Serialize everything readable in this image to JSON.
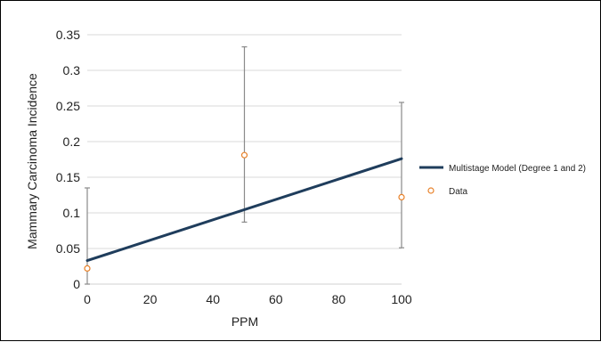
{
  "chart_data": {
    "type": "line",
    "xlabel": "PPM",
    "ylabel": "Mammary Carcinoma Incidence",
    "xlim": [
      0,
      100
    ],
    "ylim": [
      0,
      0.35
    ],
    "x_ticks": [
      "0",
      "20",
      "40",
      "60",
      "80",
      "100"
    ],
    "y_ticks": [
      "0",
      "0.05",
      "0.1",
      "0.15",
      "0.2",
      "0.25",
      "0.3",
      "0.35"
    ],
    "grid": "horizontal",
    "legend_position": "right",
    "series": [
      {
        "name": "Multistage Model (Degree 1 and 2)",
        "kind": "line",
        "color": "#1f3d5c",
        "x": [
          0,
          100
        ],
        "y": [
          0.033,
          0.176
        ]
      },
      {
        "name": "Data",
        "kind": "scatter",
        "color": "#e8822a",
        "x": [
          0,
          50,
          100
        ],
        "y": [
          0.022,
          0.181,
          0.122
        ],
        "error_low": [
          0,
          0.087,
          0.051
        ],
        "error_high": [
          0.135,
          0.333,
          0.255
        ]
      }
    ]
  }
}
